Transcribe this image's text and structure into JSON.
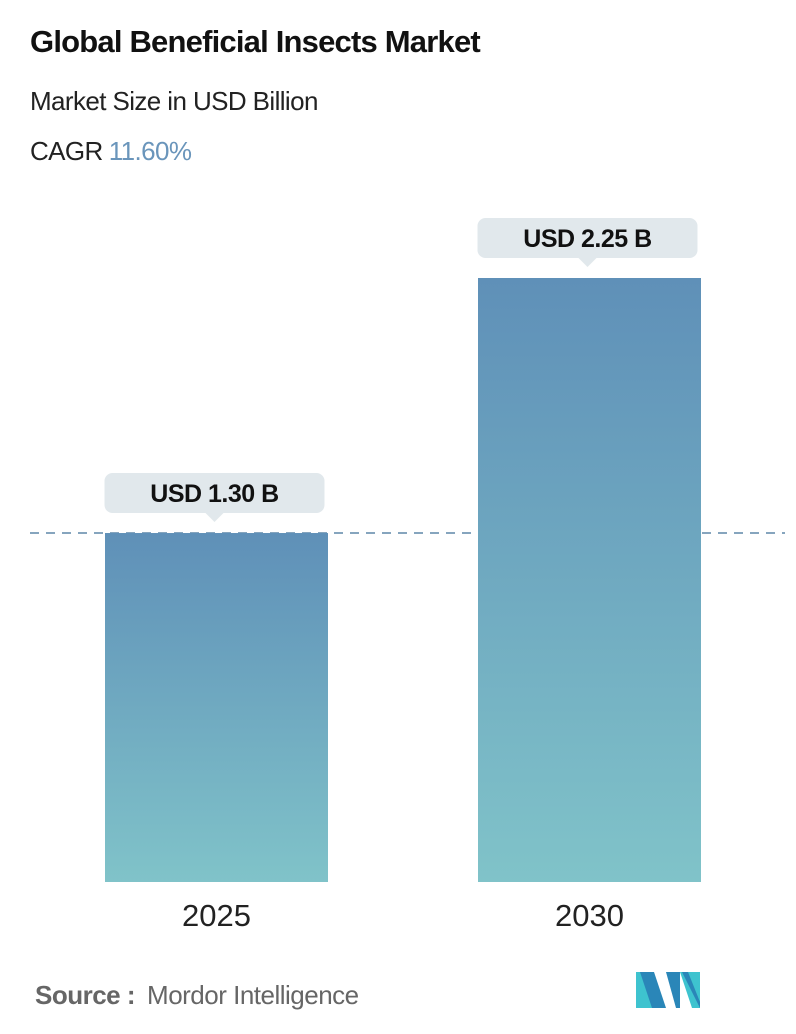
{
  "header": {
    "title": "Global Beneficial Insects Market",
    "subtitle": "Market Size in USD Billion",
    "cagr_label": "CAGR",
    "cagr_value": "11.60%"
  },
  "chart_data": {
    "type": "bar",
    "categories": [
      "2025",
      "2030"
    ],
    "values": [
      1.3,
      2.25
    ],
    "data_labels": [
      "USD 1.30 B",
      "USD 2.25 B"
    ],
    "ylabel": "Market Size in USD Billion",
    "ylim": [
      0,
      2.25
    ],
    "grid": false,
    "reference_line": 1.3
  },
  "colors": {
    "bar_top": "#5f90b8",
    "bar_bottom": "#80c3c9",
    "label_bg": "#e1e8ec",
    "cagr": "#6a95bb",
    "dashed_line": "#5f87a8"
  },
  "footer": {
    "source_label": "Source :",
    "source_value": "Mordor Intelligence",
    "logo_icon": "mordor-intelligence-logo"
  }
}
